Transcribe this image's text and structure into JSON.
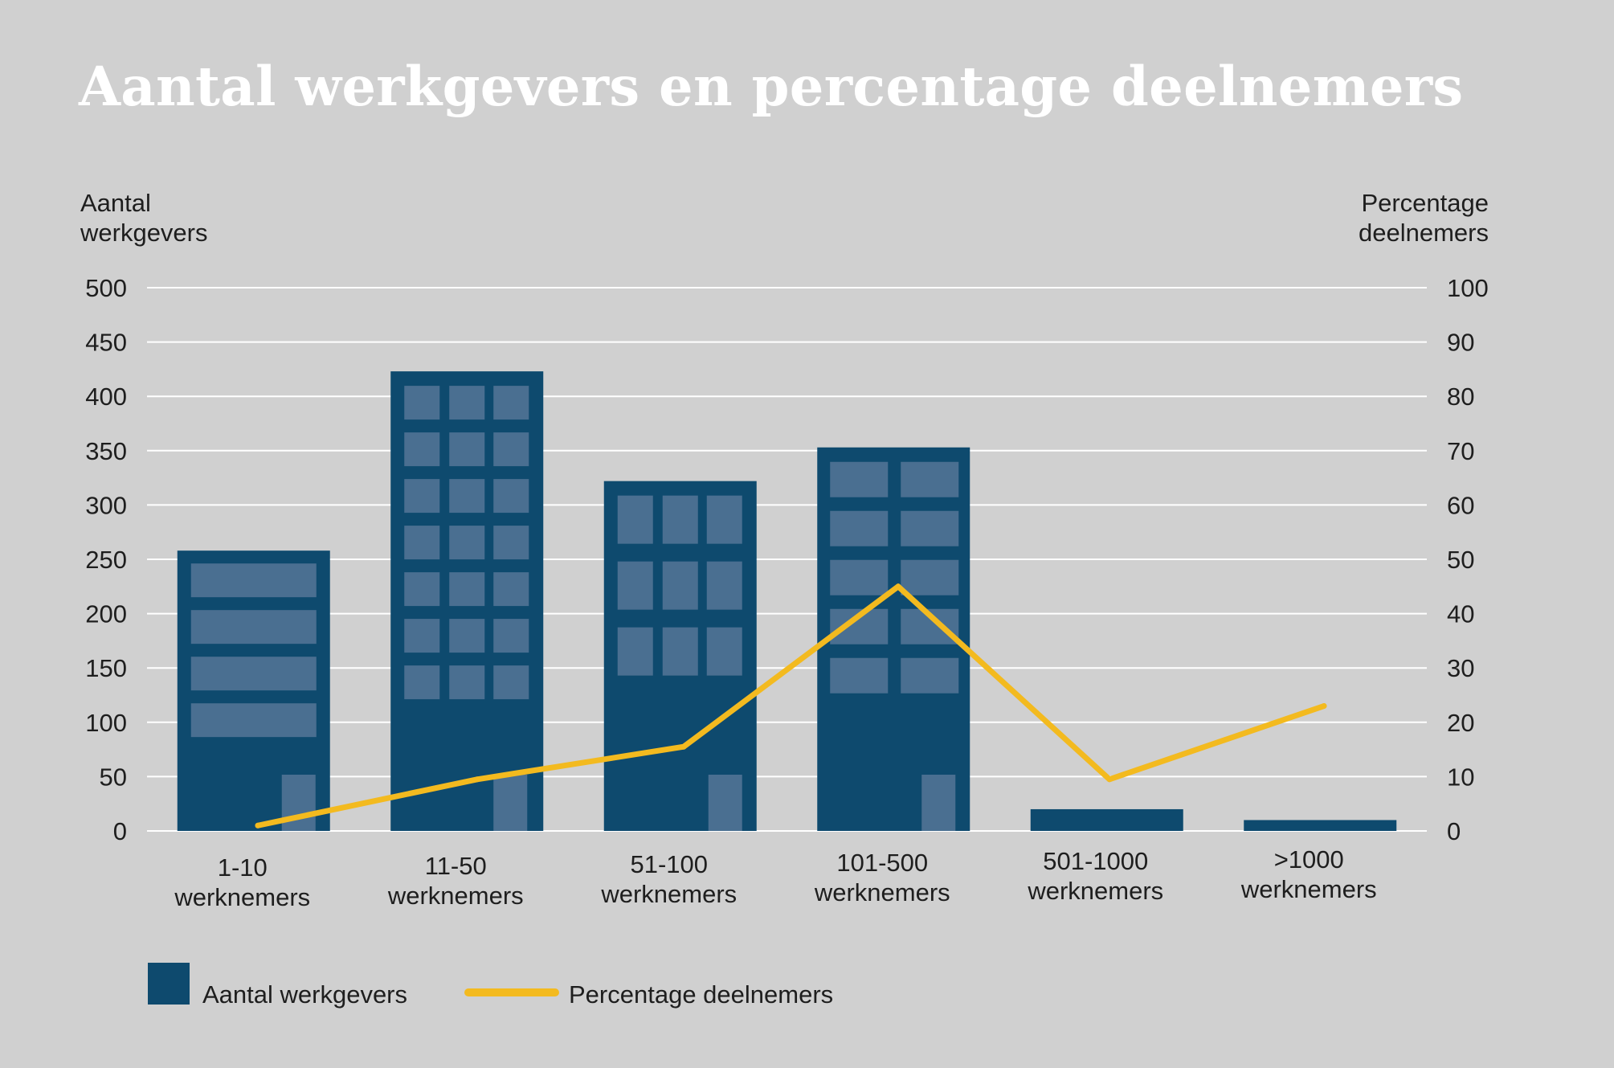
{
  "title": "Aantal werkgevers en percentage deelnemers",
  "left_axis_title": [
    "Aantal",
    "werkgevers"
  ],
  "right_axis_title": [
    "Percentage",
    "deelnemers"
  ],
  "colors": {
    "background": "#d0d0d0",
    "bars": "#0e4a6e",
    "windows": "#4a6f91",
    "line": "#f3ba1f",
    "grid": "#ffffff",
    "title": "#ffffff"
  },
  "legend": {
    "bars_label": "Aantal werkgevers",
    "line_label": "Percentage deelnemers"
  },
  "chart_data": {
    "type": "bar",
    "title": "Aantal werkgevers en percentage deelnemers",
    "categories": [
      [
        "1-10",
        "werknemers"
      ],
      [
        "11-50",
        "werknemers"
      ],
      [
        "51-100",
        "werknemers"
      ],
      [
        "101-500",
        "werknemers"
      ],
      [
        "501-1000",
        "werknemers"
      ],
      [
        ">1000",
        "werknemers"
      ]
    ],
    "series": [
      {
        "name": "Aantal werkgevers",
        "type": "bar",
        "axis": "left",
        "values": [
          258,
          423,
          322,
          353,
          20,
          10
        ]
      },
      {
        "name": "Percentage deelnemers",
        "type": "line",
        "axis": "right",
        "values": [
          1,
          9.5,
          15.5,
          45,
          9.5,
          23
        ]
      }
    ],
    "y_left": {
      "label": "Aantal werkgevers",
      "ylim": [
        0,
        500
      ],
      "ticks": [
        "0",
        "50",
        "100",
        "150",
        "200",
        "250",
        "300",
        "350",
        "400",
        "450",
        "500"
      ]
    },
    "y_right": {
      "label": "Percentage deelnemers",
      "ylim": [
        0,
        100
      ],
      "ticks": [
        "0",
        "10",
        "20",
        "30",
        "40",
        "50",
        "60",
        "70",
        "80",
        "90",
        "100"
      ]
    },
    "grid": true,
    "legend_position": "bottom-left",
    "bar_decoration": [
      "bands",
      "grid3",
      "grid3",
      "grid2",
      "none",
      "none"
    ]
  }
}
